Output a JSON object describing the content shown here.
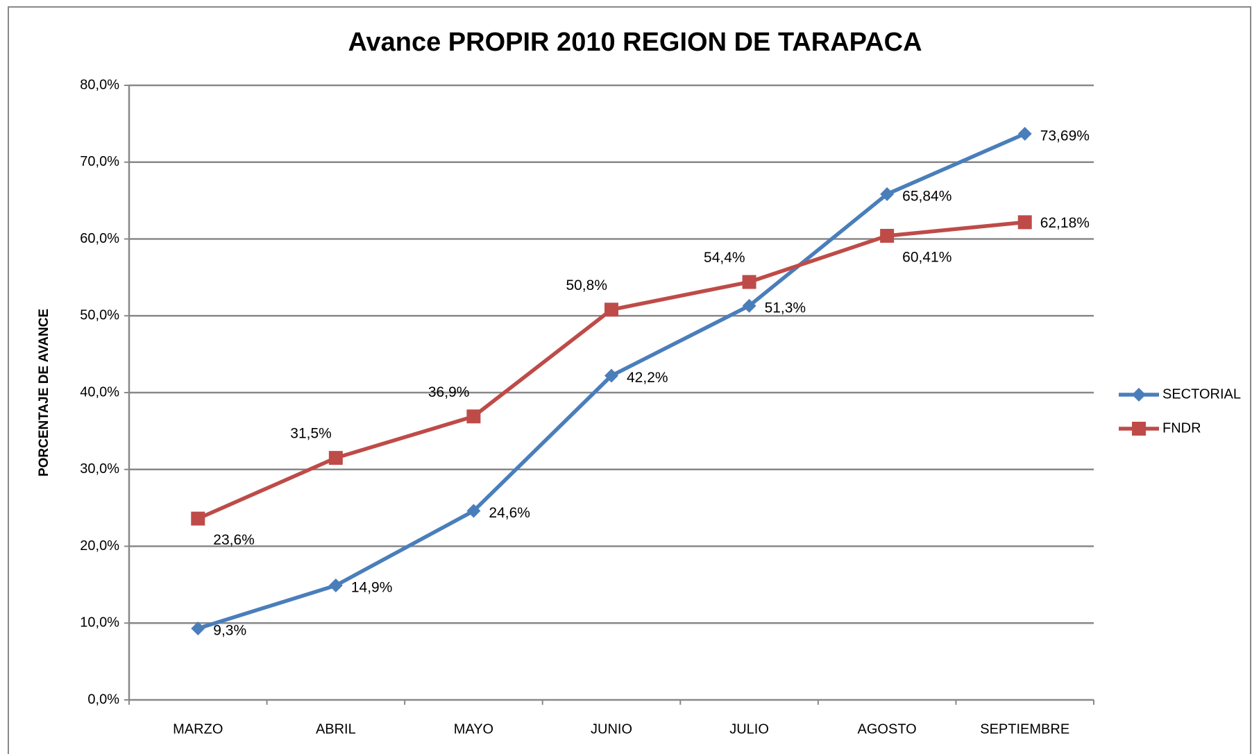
{
  "chart_data": {
    "type": "line",
    "title": "Avance PROPIR 2010 REGION DE TARAPACA",
    "y_label": "PORCENTAJE DE AVANCE",
    "categories": [
      "MARZO",
      "ABRIL",
      "MAYO",
      "JUNIO",
      "JULIO",
      "AGOSTO",
      "SEPTIEMBRE"
    ],
    "series": [
      {
        "name": "SECTORIAL",
        "color": "#4a7ebb",
        "marker": "diamond",
        "values": [
          9.3,
          14.9,
          24.6,
          42.2,
          51.3,
          65.84,
          73.69
        ],
        "value_labels": [
          "9,3%",
          "14,9%",
          "24,6%",
          "42,2%",
          "51,3%",
          "65,84%",
          "73,69%"
        ]
      },
      {
        "name": "FNDR",
        "color": "#be4b48",
        "marker": "square",
        "values": [
          23.6,
          31.5,
          36.9,
          50.8,
          54.4,
          60.41,
          62.18
        ],
        "value_labels": [
          "23,6%",
          "31,5%",
          "36,9%",
          "50,8%",
          "54,4%",
          "60,41%",
          "62,18%"
        ]
      }
    ],
    "ylim": [
      0,
      80
    ],
    "yticks": [
      {
        "value": 0,
        "label": "0,0%"
      },
      {
        "value": 10,
        "label": "10,0%"
      },
      {
        "value": 20,
        "label": "20,0%"
      },
      {
        "value": 30,
        "label": "30,0%"
      },
      {
        "value": 40,
        "label": "40,0%"
      },
      {
        "value": 50,
        "label": "50,0%"
      },
      {
        "value": 60,
        "label": "60,0%"
      },
      {
        "value": 70,
        "label": "70,0%"
      },
      {
        "value": 80,
        "label": "80,0%"
      }
    ],
    "grid": true,
    "legend": "right"
  }
}
